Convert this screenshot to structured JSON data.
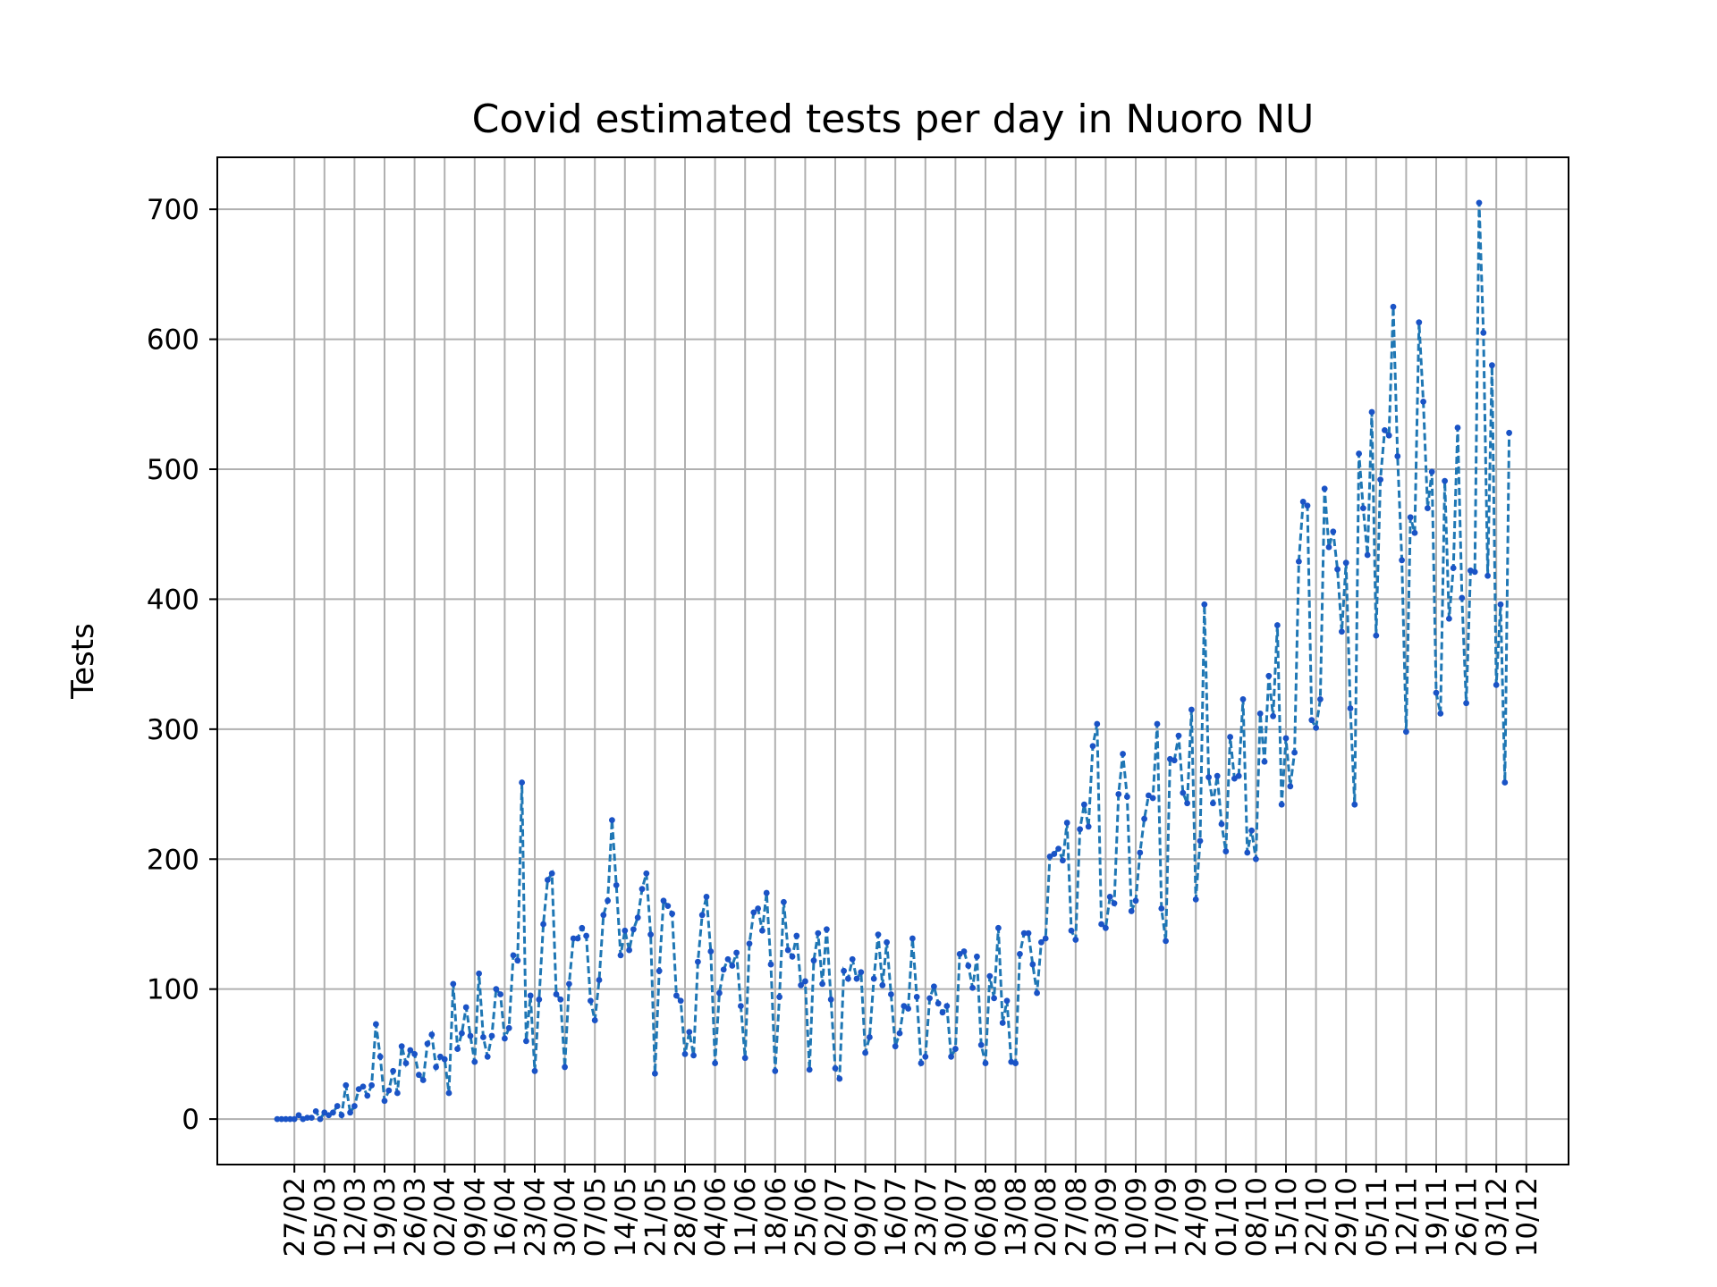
{
  "chart_data": {
    "type": "line",
    "title": "Covid estimated tests per day in Nuoro NU",
    "xlabel": "",
    "ylabel": "Tests",
    "ylim": [
      -35,
      740
    ],
    "yticks": [
      0,
      100,
      200,
      300,
      400,
      500,
      600,
      700
    ],
    "xtick_labels": [
      "27/02",
      "05/03",
      "12/03",
      "19/03",
      "26/03",
      "02/04",
      "09/04",
      "16/04",
      "23/04",
      "30/04",
      "07/05",
      "14/05",
      "21/05",
      "28/05",
      "04/06",
      "11/06",
      "18/06",
      "25/06",
      "02/07",
      "09/07",
      "16/07",
      "23/07",
      "30/07",
      "06/08",
      "13/08",
      "20/08",
      "27/08",
      "03/09",
      "10/09",
      "17/09",
      "24/09",
      "01/10",
      "08/10",
      "15/10",
      "22/10",
      "29/10",
      "05/11",
      "12/11",
      "19/11",
      "26/11",
      "03/12",
      "10/12"
    ],
    "grid": true,
    "series": [
      {
        "color": "#1f77b4",
        "marker_color": "#1a53c6",
        "line_style": "dashed",
        "values": [
          0,
          0,
          0,
          0,
          0,
          3,
          0,
          1,
          1,
          6,
          0,
          5,
          3,
          5,
          10,
          3,
          26,
          5,
          10,
          23,
          25,
          18,
          26,
          73,
          48,
          14,
          22,
          37,
          20,
          56,
          43,
          53,
          50,
          34,
          30,
          58,
          65,
          40,
          48,
          46,
          20,
          104,
          54,
          66,
          86,
          64,
          44,
          112,
          63,
          48,
          64,
          100,
          96,
          62,
          70,
          126,
          122,
          259,
          60,
          95,
          37,
          92,
          150,
          184,
          189,
          96,
          92,
          40,
          104,
          139,
          139,
          147,
          141,
          91,
          76,
          107,
          157,
          168,
          230,
          180,
          126,
          145,
          130,
          146,
          155,
          177,
          189,
          142,
          35,
          114,
          168,
          164,
          158,
          95,
          91,
          50,
          67,
          49,
          121,
          157,
          171,
          129,
          43,
          97,
          115,
          123,
          118,
          128,
          87,
          47,
          135,
          159,
          162,
          145,
          174,
          119,
          37,
          94,
          167,
          130,
          125,
          141,
          103,
          106,
          38,
          122,
          143,
          104,
          146,
          92,
          39,
          31,
          114,
          108,
          123,
          108,
          113,
          51,
          63,
          108,
          142,
          103,
          136,
          96,
          56,
          66,
          87,
          85,
          139,
          94,
          43,
          48,
          93,
          102,
          89,
          82,
          87,
          48,
          54,
          127,
          129,
          118,
          101,
          125,
          57,
          43,
          110,
          93,
          147,
          74,
          91,
          44,
          43,
          127,
          143,
          143,
          119,
          97,
          136,
          139,
          202,
          204,
          208,
          199,
          228,
          145,
          138,
          223,
          242,
          225,
          287,
          304,
          150,
          147,
          171,
          166,
          250,
          281,
          248,
          160,
          168,
          205,
          231,
          249,
          247,
          304,
          162,
          137,
          277,
          276,
          295,
          251,
          243,
          315,
          169,
          214,
          396,
          263,
          243,
          264,
          227,
          206,
          294,
          262,
          264,
          323,
          205,
          222,
          200,
          312,
          275,
          341,
          310,
          380,
          242,
          293,
          256,
          282,
          429,
          475,
          472,
          307,
          301,
          323,
          485,
          440,
          452,
          423,
          375,
          428,
          316,
          242,
          512,
          470,
          434,
          544,
          372,
          492,
          530,
          526,
          625,
          510,
          430,
          298,
          463,
          451,
          613,
          552,
          470,
          498,
          328,
          312,
          491,
          385,
          424,
          532,
          401,
          320,
          422,
          421,
          705,
          605,
          418,
          580,
          334,
          396,
          259,
          528
        ]
      }
    ]
  }
}
